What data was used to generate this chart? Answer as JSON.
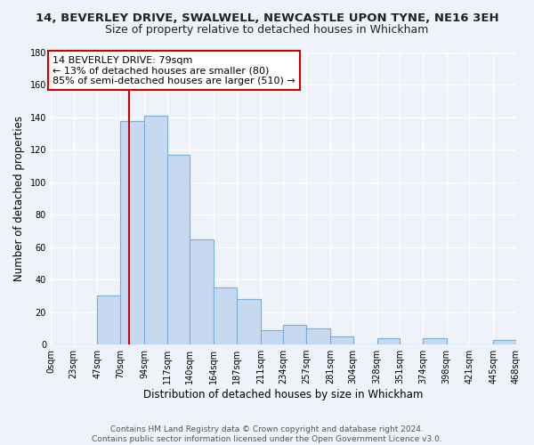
{
  "title_line1": "14, BEVERLEY DRIVE, SWALWELL, NEWCASTLE UPON TYNE, NE16 3EH",
  "title_line2": "Size of property relative to detached houses in Whickham",
  "xlabel": "Distribution of detached houses by size in Whickham",
  "ylabel": "Number of detached properties",
  "bar_edges": [
    0,
    23,
    47,
    70,
    94,
    117,
    140,
    164,
    187,
    211,
    234,
    257,
    281,
    304,
    328,
    351,
    374,
    398,
    421,
    445,
    468
  ],
  "bar_heights": [
    0,
    0,
    30,
    138,
    141,
    117,
    65,
    35,
    28,
    9,
    12,
    10,
    5,
    0,
    4,
    0,
    4,
    0,
    0,
    3
  ],
  "bar_color": "#c6d9f0",
  "bar_edge_color": "#7bafd4",
  "property_line_x": 79,
  "property_line_color": "#cc0000",
  "annotation_line1": "14 BEVERLEY DRIVE: 79sqm",
  "annotation_line2": "← 13% of detached houses are smaller (80)",
  "annotation_line3": "85% of semi-detached houses are larger (510) →",
  "annotation_box_color": "#ffffff",
  "annotation_box_edge": "#cc0000",
  "tick_labels": [
    "0sqm",
    "23sqm",
    "47sqm",
    "70sqm",
    "94sqm",
    "117sqm",
    "140sqm",
    "164sqm",
    "187sqm",
    "211sqm",
    "234sqm",
    "257sqm",
    "281sqm",
    "304sqm",
    "328sqm",
    "351sqm",
    "374sqm",
    "398sqm",
    "421sqm",
    "445sqm",
    "468sqm"
  ],
  "ylim": [
    0,
    180
  ],
  "yticks": [
    0,
    20,
    40,
    60,
    80,
    100,
    120,
    140,
    160,
    180
  ],
  "background_color": "#eef2f9",
  "grid_color": "#ffffff",
  "footer_text": "Contains HM Land Registry data © Crown copyright and database right 2024.\nContains public sector information licensed under the Open Government Licence v3.0.",
  "title_fontsize": 9.5,
  "subtitle_fontsize": 9,
  "axis_label_fontsize": 8.5,
  "tick_fontsize": 7,
  "annotation_fontsize": 8,
  "footer_fontsize": 6.5
}
